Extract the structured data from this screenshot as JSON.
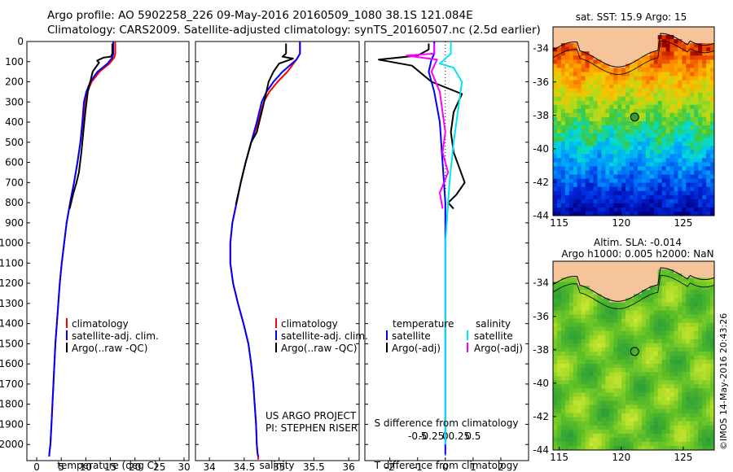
{
  "titles": {
    "line1": "Argo profile: AO 5902258_226 09-May-2016 20160509_1080 38.1S 121.084E",
    "line2": "Climatology: CARS2009. Satellite-adjusted climatology: synTS_20160507.nc (2.5d earlier)"
  },
  "colors": {
    "climatology": "#ff0000",
    "satellite": "#0000ff",
    "argo": "#000000",
    "sal_satellite": "#00e5ee",
    "sal_argo": "#ff00ff"
  },
  "chart_data": [
    {
      "id": "temp",
      "type": "line",
      "xlabel": "temperature (deg C)",
      "ylabel": "",
      "xlim": [
        -2,
        31
      ],
      "ylim": [
        2080,
        0
      ],
      "xticks": [
        0,
        5,
        10,
        15,
        20,
        25,
        30
      ],
      "xtick_labels": [
        "0",
        "5",
        "10",
        "15",
        "20",
        "25",
        "30"
      ],
      "yticks": [
        0,
        100,
        200,
        300,
        400,
        500,
        600,
        700,
        800,
        900,
        1000,
        1100,
        1200,
        1300,
        1400,
        1500,
        1600,
        1700,
        1800,
        1900,
        2000
      ],
      "ytick_labels": [
        "0",
        "100",
        "200",
        "300",
        "400",
        "500",
        "600",
        "700",
        "800",
        "900",
        "1000",
        "1100",
        "1200",
        "1300",
        "1400",
        "1500",
        "1600",
        "1700",
        "1800",
        "1900",
        "2000"
      ],
      "legend": [
        "climatology",
        "satellite-adj. clim.",
        "Argo(..raw -QC)"
      ],
      "series": [
        {
          "name": "climatology",
          "color": "#ff0000",
          "x": [
            16.0,
            16.0,
            15.8,
            14.8,
            12.8,
            11.2,
            10.3,
            9.8,
            9.4,
            8.9,
            8.3,
            7.6,
            6.8,
            6.1,
            5.6,
            5.1,
            4.7,
            4.4,
            4.1,
            3.8,
            3.6,
            3.4,
            3.2,
            3.0,
            2.8,
            2.6,
            2.55
          ],
          "y": [
            0,
            60,
            80,
            110,
            150,
            200,
            250,
            300,
            400,
            500,
            600,
            700,
            800,
            900,
            1000,
            1100,
            1200,
            1300,
            1400,
            1500,
            1600,
            1700,
            1800,
            1900,
            2000,
            2040,
            2060
          ]
        },
        {
          "name": "satellite-adj. clim.",
          "color": "#0000ff",
          "x": [
            15.6,
            15.6,
            15.4,
            14.4,
            12.4,
            10.9,
            10.1,
            9.6,
            9.3,
            8.9,
            8.3,
            7.6,
            6.8,
            6.1,
            5.6,
            5.1,
            4.7,
            4.4,
            4.1,
            3.8,
            3.6,
            3.4,
            3.2,
            3.0,
            2.8,
            2.6,
            2.55
          ],
          "y": [
            0,
            60,
            80,
            110,
            150,
            200,
            250,
            300,
            400,
            500,
            600,
            700,
            800,
            900,
            1000,
            1100,
            1200,
            1300,
            1400,
            1500,
            1600,
            1700,
            1800,
            1900,
            2000,
            2040,
            2060
          ]
        },
        {
          "name": "Argo(..raw -QC)",
          "color": "#000000",
          "x": [
            15.4,
            15.4,
            15.1,
            13.6,
            12.3,
            12.7,
            11.4,
            10.4,
            9.9,
            9.5,
            9.1,
            8.6,
            8.1,
            7.5,
            6.7
          ],
          "y": [
            10,
            60,
            75,
            80,
            95,
            105,
            150,
            250,
            350,
            450,
            550,
            650,
            700,
            750,
            830
          ]
        }
      ]
    },
    {
      "id": "sal",
      "type": "line",
      "xlabel": "salinity",
      "ylabel": "",
      "xlim": [
        33.8,
        36.15
      ],
      "ylim": [
        2080,
        0
      ],
      "xticks": [
        34,
        34.5,
        35,
        35.5,
        36
      ],
      "xtick_labels": [
        "34",
        "34.5",
        "35",
        "35.5",
        "36"
      ],
      "legend": [
        "climatology",
        "satellite-adj. clim.",
        "Argo(..raw -QC)"
      ],
      "annotations": [
        "US ARGO PROJECT",
        "PI: STEPHEN RISER"
      ],
      "series": [
        {
          "name": "climatology",
          "color": "#ff0000",
          "x": [
            35.3,
            35.3,
            35.25,
            35.12,
            34.98,
            34.86,
            34.78,
            34.7,
            34.6,
            34.52,
            34.45,
            34.39,
            34.33,
            34.3,
            34.3,
            34.34,
            34.41,
            34.49,
            34.56,
            34.6,
            34.63,
            34.65,
            34.67,
            34.68,
            34.69,
            34.7,
            34.7
          ],
          "y": [
            0,
            60,
            90,
            150,
            200,
            250,
            300,
            400,
            500,
            600,
            700,
            800,
            900,
            1000,
            1100,
            1200,
            1300,
            1400,
            1500,
            1600,
            1700,
            1800,
            1900,
            2000,
            2040,
            2060,
            2075
          ]
        },
        {
          "name": "satellite-adj. clim.",
          "color": "#0000ff",
          "x": [
            35.3,
            35.3,
            35.25,
            35.05,
            34.92,
            34.82,
            34.75,
            34.68,
            34.6,
            34.52,
            34.45,
            34.39,
            34.33,
            34.3,
            34.3,
            34.34,
            34.41,
            34.49,
            34.56,
            34.6,
            34.63,
            34.65,
            34.67,
            34.68,
            34.69,
            34.7
          ],
          "y": [
            0,
            60,
            90,
            150,
            200,
            250,
            300,
            400,
            500,
            600,
            700,
            800,
            900,
            1000,
            1100,
            1200,
            1300,
            1400,
            1500,
            1600,
            1700,
            1800,
            1900,
            2000,
            2040,
            2060
          ]
        },
        {
          "name": "Argo(..raw -QC)",
          "color": "#000000",
          "x": [
            35.1,
            35.1,
            35.05,
            35.2,
            35.0,
            34.92,
            34.85,
            34.8,
            34.75,
            34.68,
            34.6,
            34.52,
            34.45,
            34.38
          ],
          "y": [
            10,
            60,
            75,
            85,
            110,
            150,
            200,
            280,
            350,
            450,
            500,
            600,
            700,
            810
          ]
        }
      ]
    },
    {
      "id": "diff",
      "type": "line",
      "xlabel": "T difference from climatology",
      "xlabel_top": "S difference from climatology",
      "xlim": [
        -2.9,
        3.0
      ],
      "ylim": [
        2080,
        0
      ],
      "xticks": [
        -2,
        -1,
        0,
        1,
        2
      ],
      "xtick_labels": [
        "-2",
        "-1",
        "0",
        "1",
        "2"
      ],
      "sticks": [
        -1,
        -0.5,
        0,
        0.5,
        1
      ],
      "stick_labels": [
        "-0.5",
        "-0.25",
        "0",
        "0.25",
        "0.5"
      ],
      "legend_left": {
        "title": "temperature",
        "items": [
          "satellite",
          "Argo(-adj)"
        ]
      },
      "legend_right": {
        "title": "salinity",
        "items": [
          "satellite",
          "Argo(-adj)"
        ]
      },
      "series": [
        {
          "name": "temperature satellite",
          "color": "#0000ff",
          "x": [
            -0.4,
            -0.4,
            -0.5,
            -0.6,
            -0.4,
            -0.2,
            -0.1,
            0.0,
            0.0,
            0.0,
            0.0,
            0.0,
            0.0,
            0.0
          ],
          "y": [
            0,
            60,
            90,
            150,
            250,
            400,
            600,
            800,
            1000,
            1200,
            1500,
            1800,
            2000,
            2050
          ]
        },
        {
          "name": "temperature Argo(-adj)",
          "color": "#000000",
          "x": [
            -0.6,
            -0.6,
            -1.0,
            -2.4,
            -1.2,
            -0.5,
            0.6,
            0.3,
            0.2,
            0.3,
            0.7,
            0.4,
            0.1,
            0.3
          ],
          "y": [
            10,
            40,
            70,
            90,
            120,
            200,
            260,
            350,
            450,
            550,
            700,
            760,
            800,
            830
          ]
        },
        {
          "name": "salinity satellite",
          "color": "#00e5ee",
          "x": [
            0.2,
            0.2,
            -0.2,
            0.3,
            0.6,
            0.5,
            0.3,
            0.15,
            0.05,
            0.0,
            0.0,
            0.0,
            0.0,
            0.0
          ],
          "y": [
            0,
            60,
            110,
            130,
            200,
            300,
            500,
            700,
            900,
            1000,
            1200,
            1500,
            1800,
            2000
          ]
        },
        {
          "name": "salinity Argo(-adj)",
          "color": "#ff00ff",
          "x": [
            -0.4,
            -0.4,
            -1.4,
            -0.3,
            -0.5,
            -0.2,
            -0.1,
            0.0,
            -0.1,
            0.1,
            -0.2,
            -0.1
          ],
          "y": [
            10,
            60,
            70,
            90,
            150,
            250,
            350,
            450,
            550,
            650,
            750,
            830
          ]
        }
      ]
    },
    {
      "id": "sst_map",
      "type": "heatmap",
      "title": "sat. SST: 15.9 Argo: 15",
      "xlim": [
        114.5,
        127.5
      ],
      "ylim": [
        -44,
        -32.7
      ],
      "xticks": [
        115,
        120,
        125
      ],
      "xtick_labels": [
        "115",
        "120",
        "125"
      ],
      "yticks": [
        -44,
        -42,
        -40,
        -38,
        -36,
        -34
      ],
      "ytick_labels": [
        "-44",
        "-42",
        "-40",
        "-38",
        "-36",
        "-34"
      ],
      "marker": {
        "lon": 121.084,
        "lat": -38.1
      }
    },
    {
      "id": "sla_map",
      "type": "heatmap",
      "title": "Altim. SLA: -0.014",
      "subtitle": "Argo h1000: 0.005 h2000: NaN",
      "xlim": [
        114.5,
        127.5
      ],
      "ylim": [
        -44,
        -32.7
      ],
      "xticks": [
        115,
        120,
        125
      ],
      "xtick_labels": [
        "115",
        "120",
        "125"
      ],
      "yticks": [
        -44,
        -42,
        -40,
        -38,
        -36,
        -34
      ],
      "ytick_labels": [
        "-44",
        "-42",
        "-40",
        "-38",
        "-36",
        "-34"
      ],
      "marker": {
        "lon": 121.084,
        "lat": -38.1
      }
    }
  ],
  "credit": "©IMOS 14-May-2016 20:43:26"
}
